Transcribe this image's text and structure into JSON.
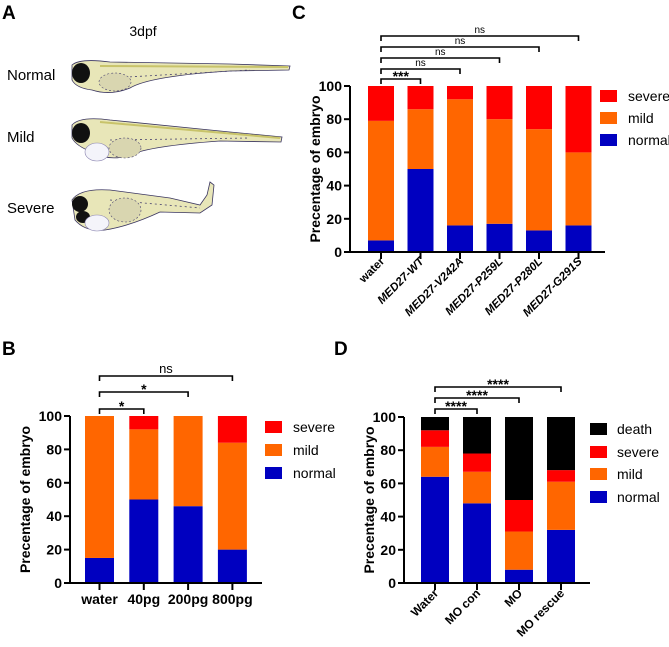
{
  "figure": {
    "panels": {
      "A": {
        "letter": "A",
        "title": "3dpf",
        "rows": [
          "Normal",
          "Mild",
          "Severe"
        ]
      },
      "B": {
        "letter": "B"
      },
      "C": {
        "letter": "C"
      },
      "D": {
        "letter": "D"
      }
    }
  },
  "colors": {
    "normal": "#0000C0",
    "mild": "#FF6600",
    "severe": "#FF0000",
    "death": "#000000"
  },
  "chart_data": [
    {
      "id": "B",
      "type": "bar",
      "stacked": true,
      "title": "",
      "xlabel": "",
      "ylabel": "Precentage of embryo",
      "ylim": [
        0,
        100
      ],
      "yticks": [
        "0",
        "20",
        "40",
        "60",
        "80",
        "100"
      ],
      "categories": [
        "water",
        "40pg",
        "200pg",
        "800pg"
      ],
      "legend": [
        "severe",
        "mild",
        "normal"
      ],
      "legend_position": "right",
      "series": [
        {
          "name": "normal",
          "values": [
            15,
            50,
            46,
            20
          ]
        },
        {
          "name": "mild",
          "values": [
            85,
            42,
            54,
            64
          ]
        },
        {
          "name": "severe",
          "values": [
            0,
            8,
            0,
            16
          ]
        }
      ],
      "significance": [
        {
          "from": "water",
          "to": "40pg",
          "label": "*"
        },
        {
          "from": "water",
          "to": "200pg",
          "label": "*"
        },
        {
          "from": "water",
          "to": "800pg",
          "label": "ns"
        }
      ]
    },
    {
      "id": "C",
      "type": "bar",
      "stacked": true,
      "title": "",
      "xlabel": "",
      "ylabel": "Precentage of embryo",
      "ylim": [
        0,
        100
      ],
      "yticks": [
        "0",
        "20",
        "40",
        "60",
        "80",
        "100"
      ],
      "categories": [
        "water",
        "MED27-WT",
        "MED27-V242A",
        "MED27-P259L",
        "MED27-P280L",
        "MED27-G291S"
      ],
      "legend": [
        "severe",
        "mild",
        "normal"
      ],
      "legend_position": "right",
      "series": [
        {
          "name": "normal",
          "values": [
            7,
            50,
            16,
            17,
            13,
            16
          ]
        },
        {
          "name": "mild",
          "values": [
            72,
            36,
            76,
            63,
            61,
            44
          ]
        },
        {
          "name": "severe",
          "values": [
            21,
            14,
            8,
            20,
            26,
            40
          ]
        }
      ],
      "significance": [
        {
          "from": "water",
          "to": "MED27-WT",
          "label": "***"
        },
        {
          "from": "water",
          "to": "MED27-V242A",
          "label": "ns"
        },
        {
          "from": "water",
          "to": "MED27-P259L",
          "label": "ns"
        },
        {
          "from": "water",
          "to": "MED27-P280L",
          "label": "ns"
        },
        {
          "from": "water",
          "to": "MED27-G291S",
          "label": "ns"
        }
      ]
    },
    {
      "id": "D",
      "type": "bar",
      "stacked": true,
      "title": "",
      "xlabel": "",
      "ylabel": "Precentage of embryo",
      "ylim": [
        0,
        100
      ],
      "yticks": [
        "0",
        "20",
        "40",
        "60",
        "80",
        "100"
      ],
      "categories": [
        "Water",
        "MO con",
        "MO",
        "MO rescue"
      ],
      "legend": [
        "death",
        "severe",
        "mild",
        "normal"
      ],
      "legend_position": "right",
      "series": [
        {
          "name": "normal",
          "values": [
            64,
            48,
            8,
            32
          ]
        },
        {
          "name": "mild",
          "values": [
            18,
            19,
            23,
            29
          ]
        },
        {
          "name": "severe",
          "values": [
            10,
            11,
            19,
            7
          ]
        },
        {
          "name": "death",
          "values": [
            8,
            22,
            50,
            32
          ]
        }
      ],
      "significance": [
        {
          "from": "Water",
          "to": "MO con",
          "label": "****"
        },
        {
          "from": "Water",
          "to": "MO",
          "label": "****"
        },
        {
          "from": "Water",
          "to": "MO rescue",
          "label": "****"
        }
      ]
    }
  ]
}
